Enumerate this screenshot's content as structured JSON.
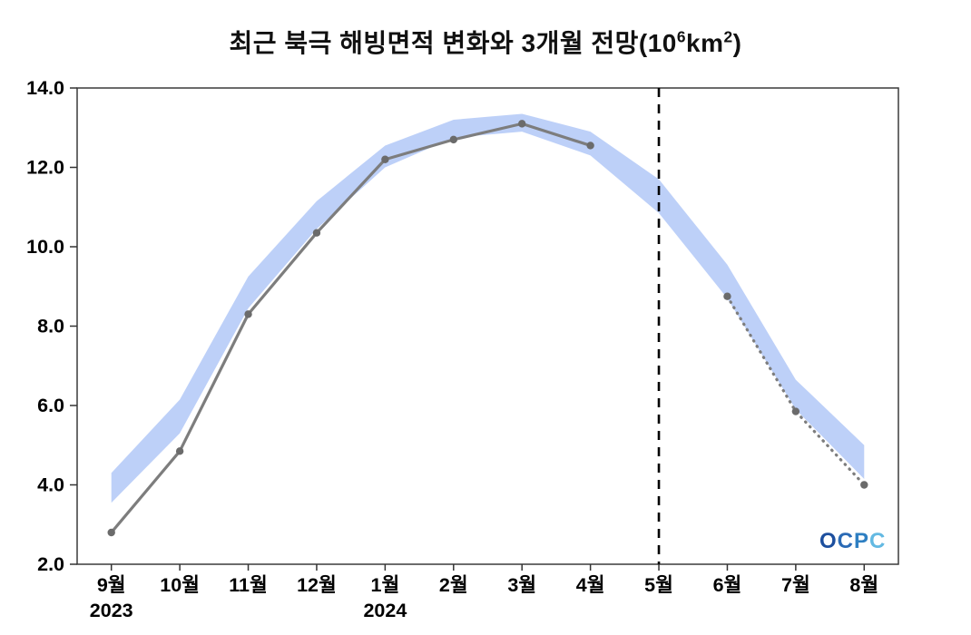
{
  "title": {
    "prefix": "최근 북극 해빙면적 변화와 3개월 전망(10",
    "sup1": "6",
    "mid": "km",
    "sup2": "2",
    "suffix": ")"
  },
  "logo": {
    "text": "OCPC",
    "letters": [
      {
        "ch": "O",
        "color": "#1d4f9e"
      },
      {
        "ch": "C",
        "color": "#2a6ab5"
      },
      {
        "ch": "P",
        "color": "#2e7fc2"
      },
      {
        "ch": "C",
        "color": "#63b9e2"
      }
    ]
  },
  "chart_data": {
    "type": "line",
    "title": "최근 북극 해빙면적 변화와 3개월 전망(10^6 km^2)",
    "categories": [
      "9월",
      "10월",
      "11월",
      "12월",
      "1월",
      "2월",
      "3월",
      "4월",
      "5월",
      "6월",
      "7월",
      "8월"
    ],
    "x_year_labels": [
      {
        "index": 0,
        "label": "2023"
      },
      {
        "index": 4,
        "label": "2024"
      }
    ],
    "series": [
      {
        "name": "observed",
        "style": "solid",
        "values": [
          2.8,
          4.85,
          8.3,
          10.35,
          12.2,
          12.7,
          13.1,
          12.55,
          null,
          null,
          null,
          null
        ]
      },
      {
        "name": "forecast",
        "style": "dotted",
        "values": [
          null,
          null,
          null,
          null,
          null,
          null,
          null,
          null,
          null,
          8.75,
          5.85,
          4.0
        ]
      }
    ],
    "band": {
      "name": "climatology-range",
      "upper": [
        4.3,
        6.15,
        9.25,
        11.15,
        12.55,
        13.2,
        13.35,
        12.9,
        11.7,
        9.55,
        6.65,
        5.0
      ],
      "lower": [
        3.55,
        5.3,
        8.45,
        10.45,
        12.0,
        12.75,
        12.9,
        12.3,
        10.85,
        8.7,
        5.9,
        4.15
      ]
    },
    "divider_index": 8,
    "ylim": [
      2,
      14
    ],
    "yticks": [
      2,
      4,
      6,
      8,
      10,
      12,
      14
    ],
    "ytick_labels": [
      "2.0",
      "4.0",
      "6.0",
      "8.0",
      "10.0",
      "12.0",
      "14.0"
    ],
    "grid": false,
    "legend": "none",
    "colors": {
      "band": "#b9cdf8",
      "line": "#7d7d7d",
      "marker": "#6b6b6b",
      "divider": "#000000",
      "axis": "#000000",
      "frame": "#3a3a3a"
    }
  }
}
